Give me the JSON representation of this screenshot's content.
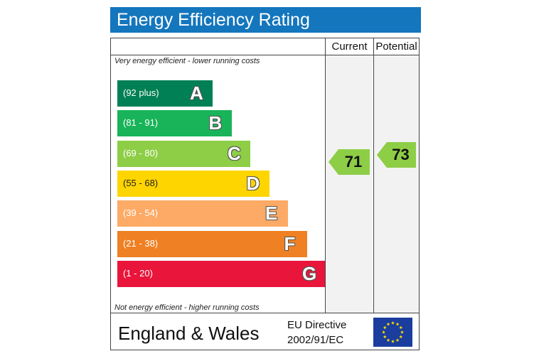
{
  "title": "Energy Efficiency Rating",
  "columns": {
    "current": "Current",
    "potential": "Potential"
  },
  "notes": {
    "top": "Very energy efficient - lower running costs",
    "bottom": "Not energy efficient - higher running costs"
  },
  "footer": {
    "country": "England & Wales",
    "directive_line1": "EU Directive",
    "directive_line2": "2002/91/EC",
    "flag_icon": "eu-flag-icon"
  },
  "chart_data": {
    "type": "bar",
    "title": "Energy Efficiency Rating",
    "bands": [
      {
        "letter": "A",
        "range": "(92 plus)",
        "color": "#008054"
      },
      {
        "letter": "B",
        "range": "(81 - 91)",
        "color": "#19b459"
      },
      {
        "letter": "C",
        "range": "(69 - 80)",
        "color": "#8dce46"
      },
      {
        "letter": "D",
        "range": "(55 - 68)",
        "color": "#ffd500"
      },
      {
        "letter": "E",
        "range": "(39 - 54)",
        "color": "#fcaa65"
      },
      {
        "letter": "F",
        "range": "(21 - 38)",
        "color": "#ef8023"
      },
      {
        "letter": "G",
        "range": "(1 - 20)",
        "color": "#e9153b"
      }
    ],
    "current": {
      "value": 71,
      "band": "C",
      "color": "#8dce46"
    },
    "potential": {
      "value": 73,
      "band": "C",
      "color": "#8dce46"
    }
  }
}
